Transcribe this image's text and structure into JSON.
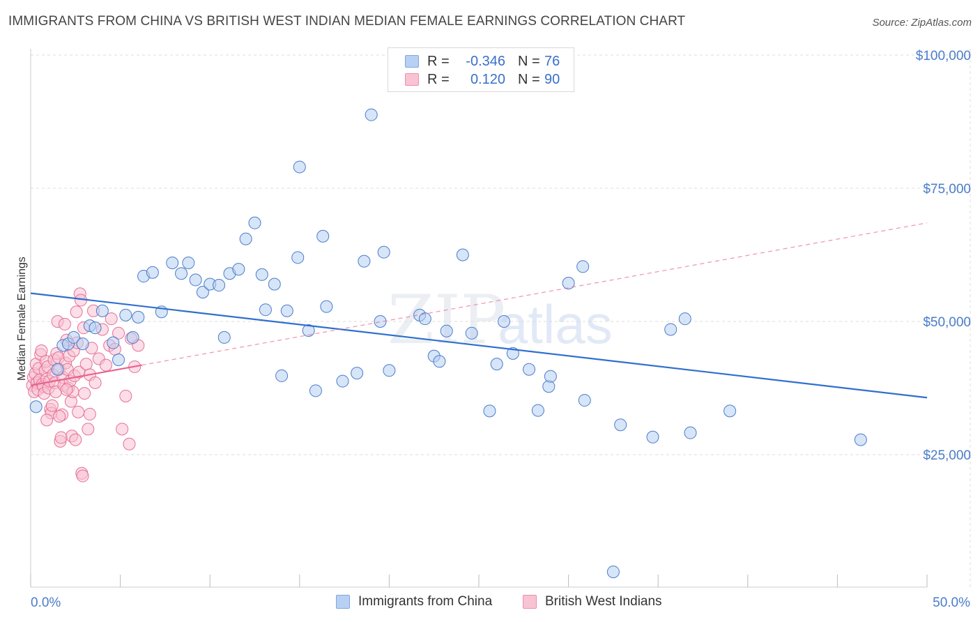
{
  "title": "IMMIGRANTS FROM CHINA VS BRITISH WEST INDIAN MEDIAN FEMALE EARNINGS CORRELATION CHART",
  "source": "Source: ZipAtlas.com",
  "watermark": {
    "zip": "ZIP",
    "atlas": "atlas"
  },
  "colors": {
    "blue": "#4a7cc9",
    "blue_fill": "#b7d0f3",
    "blue_line": "#2f6fce",
    "pink": "#e76f96",
    "pink_fill": "#f8c3d3",
    "pink_line": "#e8628c",
    "grid": "#dcdcdc"
  },
  "legend": {
    "row1": {
      "r_label": "R =",
      "r_value": "-0.346",
      "n_label": "N =",
      "n_value": "76"
    },
    "row2": {
      "r_label": "R =",
      "r_value": "0.120",
      "n_label": "N =",
      "n_value": "90"
    }
  },
  "bottom_legend": {
    "series1": "Immigrants from China",
    "series2": "British West Indians"
  },
  "chart_data": {
    "type": "scatter",
    "title": "IMMIGRANTS FROM CHINA VS BRITISH WEST INDIAN MEDIAN FEMALE EARNINGS CORRELATION CHART",
    "xlabel": "",
    "ylabel": "Median Female Earnings",
    "x_unit": "percent",
    "xlim": [
      0,
      50
    ],
    "ylim": [
      0,
      105000
    ],
    "x_tick_labels": [
      "0.0%",
      "50.0%"
    ],
    "y_ticks": [
      25000,
      50000,
      75000,
      100000
    ],
    "y_tick_labels": [
      "$25,000",
      "$50,000",
      "$75,000",
      "$100,000"
    ],
    "grid": true,
    "series": [
      {
        "name": "Immigrants from China",
        "R": -0.346,
        "N": 76,
        "trend": {
          "x": [
            0,
            50
          ],
          "y": [
            55300,
            35700
          ],
          "style": "solid"
        },
        "points": [
          [
            0.3,
            34000
          ],
          [
            1.5,
            41000
          ],
          [
            1.8,
            45500
          ],
          [
            2.1,
            45800
          ],
          [
            2.4,
            47000
          ],
          [
            2.9,
            45800
          ],
          [
            3.3,
            49200
          ],
          [
            3.6,
            48800
          ],
          [
            4.0,
            52000
          ],
          [
            4.6,
            46000
          ],
          [
            4.9,
            42800
          ],
          [
            5.3,
            51200
          ],
          [
            5.7,
            47000
          ],
          [
            6.0,
            50800
          ],
          [
            6.3,
            58500
          ],
          [
            6.8,
            59200
          ],
          [
            7.3,
            51800
          ],
          [
            7.9,
            61000
          ],
          [
            8.4,
            59000
          ],
          [
            8.8,
            61000
          ],
          [
            9.2,
            57800
          ],
          [
            9.6,
            55500
          ],
          [
            10.0,
            57000
          ],
          [
            10.5,
            56800
          ],
          [
            10.8,
            47000
          ],
          [
            11.1,
            59000
          ],
          [
            11.6,
            59800
          ],
          [
            12.0,
            65500
          ],
          [
            12.5,
            68500
          ],
          [
            12.9,
            58800
          ],
          [
            13.1,
            52200
          ],
          [
            13.6,
            57000
          ],
          [
            14.0,
            39800
          ],
          [
            14.3,
            52000
          ],
          [
            14.9,
            62000
          ],
          [
            15.0,
            79000
          ],
          [
            15.5,
            48300
          ],
          [
            15.9,
            37000
          ],
          [
            16.3,
            66000
          ],
          [
            16.5,
            52800
          ],
          [
            17.4,
            38800
          ],
          [
            18.2,
            40300
          ],
          [
            18.6,
            61300
          ],
          [
            19.0,
            88800
          ],
          [
            19.5,
            50000
          ],
          [
            19.7,
            63000
          ],
          [
            20.0,
            40800
          ],
          [
            21.7,
            51200
          ],
          [
            22.0,
            50500
          ],
          [
            22.5,
            43500
          ],
          [
            22.8,
            42500
          ],
          [
            23.2,
            48200
          ],
          [
            24.1,
            62500
          ],
          [
            24.6,
            47800
          ],
          [
            25.6,
            33200
          ],
          [
            26.0,
            42000
          ],
          [
            26.4,
            50000
          ],
          [
            26.9,
            44000
          ],
          [
            27.8,
            41000
          ],
          [
            28.3,
            33300
          ],
          [
            28.9,
            37800
          ],
          [
            29.0,
            39700
          ],
          [
            30.0,
            57200
          ],
          [
            30.8,
            60300
          ],
          [
            30.9,
            35200
          ],
          [
            32.5,
            3000
          ],
          [
            32.9,
            30600
          ],
          [
            34.7,
            28300
          ],
          [
            35.7,
            48500
          ],
          [
            36.5,
            50500
          ],
          [
            36.8,
            29100
          ],
          [
            39.0,
            33200
          ],
          [
            46.3,
            27800
          ]
        ]
      },
      {
        "name": "British West Indians",
        "R": 0.12,
        "N": 90,
        "trend_solid": {
          "x": [
            0,
            6.2
          ],
          "y": [
            38000,
            41800
          ]
        },
        "trend_dashed": {
          "x": [
            6.2,
            50
          ],
          "y": [
            41800,
            68500
          ]
        },
        "points": [
          [
            0.1,
            38000
          ],
          [
            0.15,
            39500
          ],
          [
            0.2,
            36800
          ],
          [
            0.25,
            40200
          ],
          [
            0.3,
            42000
          ],
          [
            0.35,
            38500
          ],
          [
            0.4,
            37200
          ],
          [
            0.45,
            41200
          ],
          [
            0.5,
            39000
          ],
          [
            0.55,
            43800
          ],
          [
            0.6,
            44500
          ],
          [
            0.65,
            38200
          ],
          [
            0.7,
            37800
          ],
          [
            0.75,
            36500
          ],
          [
            0.8,
            40800
          ],
          [
            0.85,
            42500
          ],
          [
            0.9,
            39200
          ],
          [
            0.95,
            41500
          ],
          [
            1.0,
            37500
          ],
          [
            1.05,
            38800
          ],
          [
            1.1,
            33500
          ],
          [
            1.15,
            32800
          ],
          [
            1.2,
            34200
          ],
          [
            1.25,
            40000
          ],
          [
            1.3,
            42800
          ],
          [
            1.35,
            38500
          ],
          [
            1.4,
            36800
          ],
          [
            1.45,
            44000
          ],
          [
            1.5,
            50000
          ],
          [
            1.55,
            43200
          ],
          [
            1.6,
            41000
          ],
          [
            1.65,
            27500
          ],
          [
            1.7,
            28200
          ],
          [
            1.75,
            32500
          ],
          [
            1.8,
            39500
          ],
          [
            1.85,
            38000
          ],
          [
            1.9,
            49500
          ],
          [
            1.95,
            42200
          ],
          [
            2.0,
            46500
          ],
          [
            2.05,
            41000
          ],
          [
            2.1,
            37500
          ],
          [
            2.15,
            43500
          ],
          [
            2.2,
            38800
          ],
          [
            2.25,
            35000
          ],
          [
            2.3,
            28500
          ],
          [
            2.35,
            36800
          ],
          [
            2.4,
            44500
          ],
          [
            2.45,
            39800
          ],
          [
            2.5,
            27800
          ],
          [
            2.55,
            51800
          ],
          [
            2.6,
            46000
          ],
          [
            2.65,
            33000
          ],
          [
            2.7,
            40500
          ],
          [
            2.75,
            55200
          ],
          [
            2.8,
            54000
          ],
          [
            2.85,
            21500
          ],
          [
            2.9,
            21000
          ],
          [
            2.95,
            48800
          ],
          [
            3.0,
            36500
          ],
          [
            3.1,
            42000
          ],
          [
            3.2,
            29800
          ],
          [
            3.3,
            40000
          ],
          [
            3.4,
            45000
          ],
          [
            3.5,
            52000
          ],
          [
            3.6,
            38500
          ],
          [
            3.8,
            43000
          ],
          [
            4.0,
            48500
          ],
          [
            4.2,
            41800
          ],
          [
            4.4,
            45500
          ],
          [
            4.5,
            50500
          ],
          [
            4.7,
            44800
          ],
          [
            4.9,
            47800
          ],
          [
            5.1,
            29800
          ],
          [
            5.3,
            36000
          ],
          [
            5.5,
            27000
          ],
          [
            5.6,
            46800
          ],
          [
            5.8,
            41500
          ],
          [
            6.0,
            45500
          ],
          [
            0.9,
            31500
          ],
          [
            1.6,
            32200
          ],
          [
            2.0,
            37200
          ],
          [
            3.3,
            32600
          ]
        ]
      }
    ]
  }
}
